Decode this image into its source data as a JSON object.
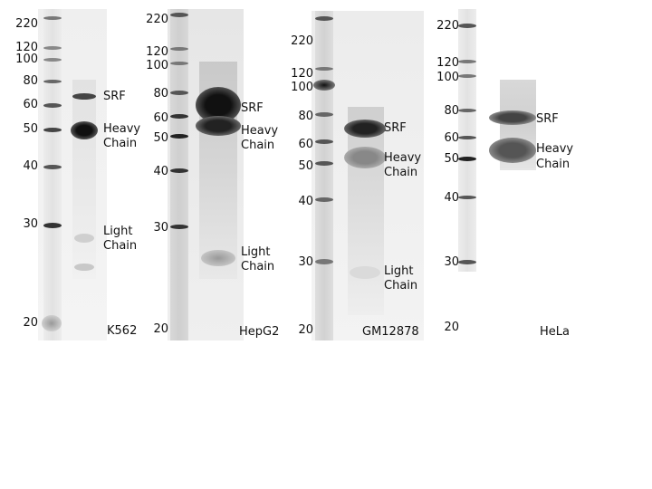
{
  "panels": [
    {
      "cell_line": "K562",
      "markers": [
        "220",
        "120",
        "100",
        "80",
        "60",
        "50",
        "40",
        "30",
        "20"
      ],
      "labels": {
        "srf": "SRF",
        "heavy_line1": "Heavy",
        "heavy_line2": "Chain",
        "light_line1": "Light",
        "light_line2": "Chain"
      }
    },
    {
      "cell_line": "HepG2",
      "markers": [
        "220",
        "120",
        "100",
        "80",
        "60",
        "50",
        "40",
        "30",
        "20"
      ],
      "labels": {
        "srf": "SRF",
        "heavy_line1": "Heavy",
        "heavy_line2": "Chain",
        "light_line1": "Light",
        "light_line2": "Chain"
      }
    },
    {
      "cell_line": "GM12878",
      "markers": [
        "220",
        "120",
        "100",
        "80",
        "60",
        "50",
        "40",
        "30",
        "20"
      ],
      "labels": {
        "srf": "SRF",
        "heavy_line1": "Heavy",
        "heavy_line2": "Chain",
        "light_line1": "Light",
        "light_line2": "Chain"
      }
    },
    {
      "cell_line": "HeLa",
      "markers": [
        "220",
        "120",
        "100",
        "80",
        "60",
        "50",
        "40",
        "30",
        "20"
      ],
      "labels": {
        "srf": "SRF",
        "heavy_line1": "Heavy",
        "heavy_line2": "Chain"
      }
    }
  ]
}
